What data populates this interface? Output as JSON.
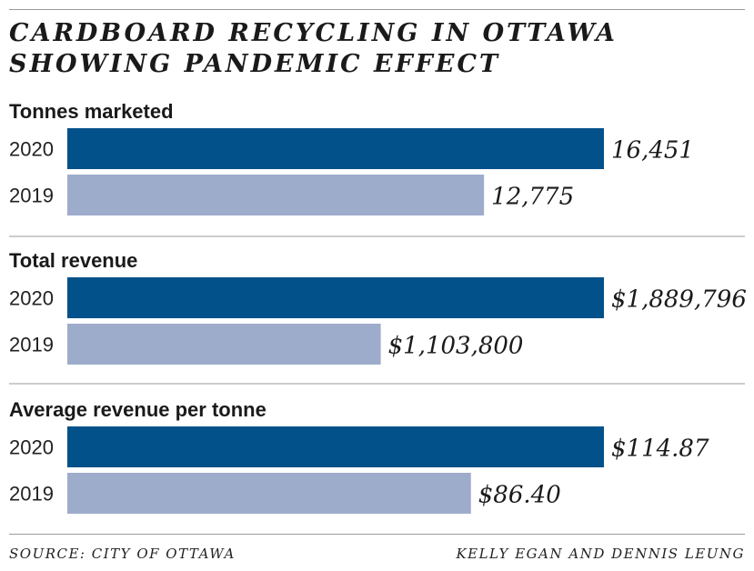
{
  "title_lines": [
    "CARDBOARD RECYCLING IN OTTAWA",
    "SHOWING PANDEMIC EFFECT"
  ],
  "source": "SOURCE: CITY OF OTTAWA",
  "credit": "KELLY EGAN AND DENNIS LEUNG",
  "colors": {
    "bar_2020": "#02518a",
    "bar_2019": "#9eaccc"
  },
  "chart_data": [
    {
      "type": "bar",
      "orientation": "horizontal",
      "title": "Tonnes marketed",
      "categories": [
        "2020",
        "2019"
      ],
      "values": [
        16451,
        12775
      ],
      "labels": [
        "16,451",
        "12,775"
      ]
    },
    {
      "type": "bar",
      "orientation": "horizontal",
      "title": "Total revenue",
      "categories": [
        "2020",
        "2019"
      ],
      "values": [
        1889796,
        1103800
      ],
      "labels": [
        "$1,889,796",
        "$1,103,800"
      ]
    },
    {
      "type": "bar",
      "orientation": "horizontal",
      "title": "Average revenue per tonne",
      "categories": [
        "2020",
        "2019"
      ],
      "values": [
        114.87,
        86.4
      ],
      "labels": [
        "$114.87",
        "$86.40"
      ]
    }
  ]
}
